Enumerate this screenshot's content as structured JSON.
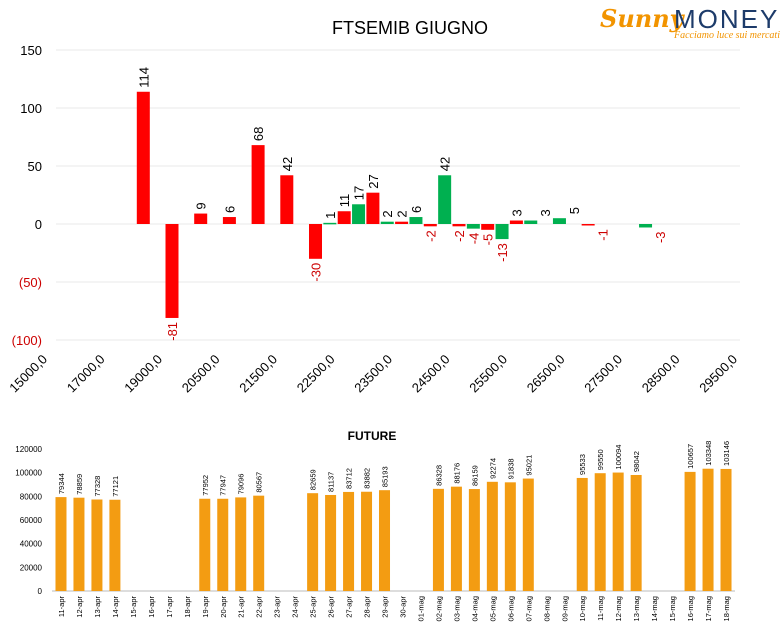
{
  "logo": {
    "word1": "Sunny",
    "word2": "MONEY",
    "tagline": "Facciamo luce sui mercati"
  },
  "colors": {
    "negative": "#ff0000",
    "positive": "#00b050",
    "future": "#f39c12",
    "neg_label": "#cc0000"
  },
  "chart_data": [
    {
      "type": "bar",
      "title": "FTSEMIB GIUGNO",
      "ylim": [
        -100,
        150
      ],
      "yticks": [
        {
          "value": 150,
          "label": "150"
        },
        {
          "value": 100,
          "label": "100"
        },
        {
          "value": 50,
          "label": "50"
        },
        {
          "value": 0,
          "label": "0"
        },
        {
          "value": -50,
          "label": "(50)"
        },
        {
          "value": -100,
          "label": "(100)"
        }
      ],
      "x_tick_labels": [
        "15000,0",
        "17000,0",
        "19000,0",
        "20500,0",
        "21500,0",
        "22500,0",
        "23500,0",
        "24500,0",
        "25500,0",
        "26500,0",
        "27500,0",
        "28500,0",
        "29500,0"
      ],
      "bars": [
        {
          "slot": 4,
          "value": 114,
          "color": "red"
        },
        {
          "slot": 5,
          "value": -81,
          "color": "red"
        },
        {
          "slot": 6,
          "value": 9,
          "color": "red"
        },
        {
          "slot": 7,
          "value": 6,
          "color": "red"
        },
        {
          "slot": 8,
          "value": 68,
          "color": "red"
        },
        {
          "slot": 9,
          "value": 42,
          "color": "red"
        },
        {
          "slot": 10,
          "value": -30,
          "color": "red"
        },
        {
          "slot": 10.5,
          "value": 1,
          "color": "green"
        },
        {
          "slot": 11,
          "value": 11,
          "color": "red"
        },
        {
          "slot": 11.5,
          "value": 17,
          "color": "green"
        },
        {
          "slot": 12,
          "value": 27,
          "color": "red"
        },
        {
          "slot": 12.5,
          "value": 2,
          "color": "green"
        },
        {
          "slot": 13,
          "value": 2,
          "color": "red"
        },
        {
          "slot": 13.5,
          "value": 6,
          "color": "green"
        },
        {
          "slot": 14,
          "value": -2,
          "color": "red"
        },
        {
          "slot": 14.5,
          "value": 42,
          "color": "green"
        },
        {
          "slot": 15,
          "value": -2,
          "color": "red"
        },
        {
          "slot": 15.5,
          "value": -4,
          "color": "green"
        },
        {
          "slot": 16,
          "value": -5,
          "color": "red"
        },
        {
          "slot": 16.5,
          "value": -13,
          "color": "green"
        },
        {
          "slot": 17,
          "value": 3,
          "color": "red"
        },
        {
          "slot": 17.5,
          "value": 3,
          "color": "green"
        },
        {
          "slot": 18.5,
          "value": 5,
          "color": "green"
        },
        {
          "slot": 19.5,
          "value": -1,
          "color": "red"
        },
        {
          "slot": 21.5,
          "value": -3,
          "color": "green"
        }
      ],
      "value_labels": [
        {
          "slot": 4,
          "value": 114,
          "text": "114"
        },
        {
          "slot": 5,
          "value": -81,
          "text": "-81"
        },
        {
          "slot": 6,
          "value": 9,
          "text": "9"
        },
        {
          "slot": 7,
          "value": 6,
          "text": "6"
        },
        {
          "slot": 8,
          "value": 68,
          "text": "68"
        },
        {
          "slot": 9,
          "value": 42,
          "text": "42"
        },
        {
          "slot": 10,
          "value": -30,
          "text": "-30"
        },
        {
          "slot": 10.5,
          "value": 1,
          "text": "1"
        },
        {
          "slot": 11,
          "value": 11,
          "text": "11"
        },
        {
          "slot": 11.5,
          "value": 17,
          "text": "17"
        },
        {
          "slot": 12,
          "value": 27,
          "text": "27"
        },
        {
          "slot": 12.5,
          "value": 2,
          "text": "2"
        },
        {
          "slot": 13,
          "value": 2,
          "text": "2"
        },
        {
          "slot": 13.5,
          "value": 6,
          "text": "6"
        },
        {
          "slot": 14,
          "value": -2,
          "text": "-2"
        },
        {
          "slot": 14.5,
          "value": 42,
          "text": "42"
        },
        {
          "slot": 15,
          "value": -2,
          "text": "-2"
        },
        {
          "slot": 15.5,
          "value": -4,
          "text": "-4"
        },
        {
          "slot": 16,
          "value": -5,
          "text": "-5"
        },
        {
          "slot": 16.5,
          "value": -13,
          "text": "-13"
        },
        {
          "slot": 17,
          "value": 3,
          "text": "3"
        },
        {
          "slot": 18,
          "value": 3,
          "text": "3"
        },
        {
          "slot": 19,
          "value": 5,
          "text": "5"
        },
        {
          "slot": 20,
          "value": -1,
          "text": "-1"
        },
        {
          "slot": 22,
          "value": -3,
          "text": "-3"
        }
      ]
    },
    {
      "type": "bar",
      "title": "FUTURE",
      "ylim": [
        0,
        120000
      ],
      "yticks": [
        0,
        20000,
        40000,
        60000,
        80000,
        100000,
        120000
      ],
      "categories": [
        "11-apr",
        "12-apr",
        "13-apr",
        "14-apr",
        "15-apr",
        "16-apr",
        "17-apr",
        "18-apr",
        "19-apr",
        "20-apr",
        "21-apr",
        "22-apr",
        "23-apr",
        "24-apr",
        "25-apr",
        "26-apr",
        "27-apr",
        "28-apr",
        "29-apr",
        "30-apr",
        "01-mag",
        "02-mag",
        "03-mag",
        "04-mag",
        "05-mag",
        "06-mag",
        "07-mag",
        "08-mag",
        "09-mag",
        "10-mag",
        "11-mag",
        "12-mag",
        "13-mag",
        "14-mag",
        "15-mag",
        "16-mag",
        "17-mag",
        "18-mag"
      ],
      "values": [
        79344,
        78859,
        77328,
        77121,
        null,
        null,
        null,
        null,
        77952,
        77947,
        79096,
        80567,
        null,
        null,
        82659,
        81137,
        83712,
        83882,
        85193,
        null,
        null,
        86328,
        88176,
        86159,
        92274,
        91838,
        95021,
        null,
        null,
        95533,
        99550,
        100094,
        98042,
        null,
        null,
        100657,
        103348,
        103146
      ]
    }
  ]
}
